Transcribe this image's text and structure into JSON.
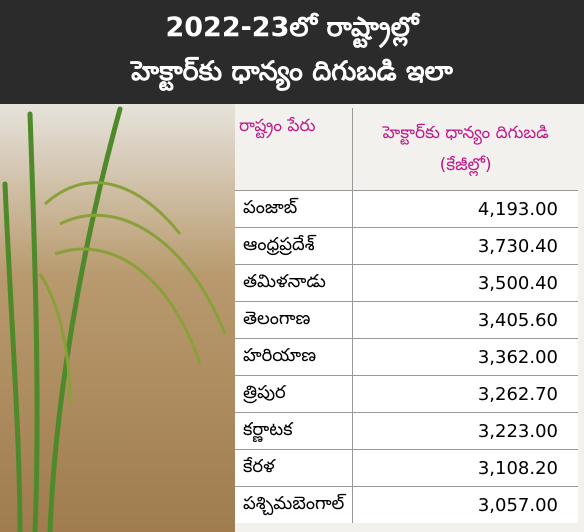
{
  "header": {
    "title_line1": "2022-23లో రాష్ట్రాల్లో",
    "title_line2": "హెక్టార్‌కు ధాన్యం దిగుబడి ఇలా"
  },
  "table": {
    "columns": [
      "రాష్ట్రం పేరు",
      "హెక్టార్‌కు ధాన్యం దిగుబడి (కేజీల్లో)"
    ],
    "rows": [
      [
        "పంజాబ్",
        "4,193.00"
      ],
      [
        "ఆంధ్రప్రదేశ్",
        "3,730.40"
      ],
      [
        "తమిళనాడు",
        "3,500.40"
      ],
      [
        "తెలంగాణ",
        "3,405.60"
      ],
      [
        "హరియాణ",
        "3,362.00"
      ],
      [
        "త్రిపుర",
        "3,262.70"
      ],
      [
        "కర్ణాటక",
        "3,223.00"
      ],
      [
        "కేరళ",
        "3,108.20"
      ],
      [
        "పశ్చిమబెంగాల్",
        "3,057.00"
      ]
    ]
  }
}
